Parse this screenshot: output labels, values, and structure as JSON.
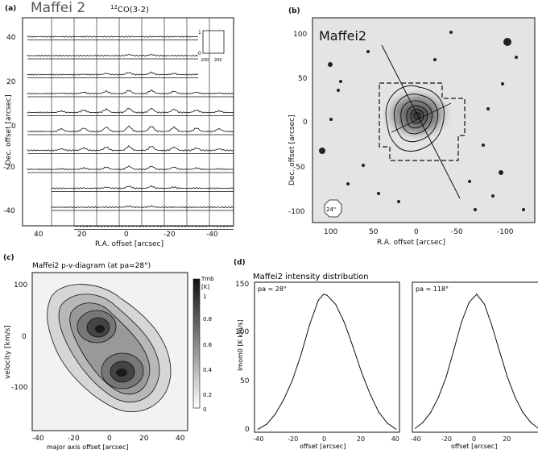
{
  "panel_a": {
    "tag": "(a)",
    "title": "Maffei 2",
    "line": "12CO(3-2)",
    "line_sup": "12",
    "line_rest": "CO(3-2)",
    "xlabel": "R.A. offset [arcsec]",
    "ylabel": "Dec. offset [arcsec]",
    "xticks": [
      "40",
      "20",
      "0",
      "-20",
      "-40"
    ],
    "yticks": [
      "40",
      "20",
      "0",
      "-20",
      "-40"
    ],
    "inset": {
      "ytop": "1",
      "ybot": "0",
      "xleft": "-200",
      "xright": "200"
    }
  },
  "panel_b": {
    "tag": "(b)",
    "title": "Maffei2",
    "xlabel": "R.A. offset [arcsec]",
    "ylabel": "Dec. offset [arcsec]",
    "xticks": [
      "100",
      "50",
      "0",
      "-50",
      "-100"
    ],
    "yticks": [
      "100",
      "50",
      "0",
      "-50",
      "-100"
    ],
    "beam": "24\""
  },
  "panel_c": {
    "tag": "(c)",
    "title": "Maffei2    p-v-diagram (at pa=28°)",
    "xlabel": "major axis offset [arcsec]",
    "ylabel": "velocity [km/s]",
    "xticks": [
      "-40",
      "-20",
      "0",
      "20",
      "40"
    ],
    "yticks": [
      "100",
      "0",
      "-100"
    ],
    "cbar_title": "Tmb",
    "cbar_unit": "[K]",
    "cbar_ticks": [
      "1",
      "0.8",
      "0.6",
      "0.4",
      "0.2",
      "0"
    ]
  },
  "panel_d": {
    "tag": "(d)",
    "title": "Maffei2 intensity distribution",
    "ylabel": "Imom0 [K km/s]",
    "yticks": [
      "150",
      "100",
      "50",
      "0"
    ],
    "xlabel_left": "offset [arcsec]",
    "xlabel_right": "offset [arcsec]",
    "xticks": [
      "-40",
      "-20",
      "0",
      "20",
      "40"
    ],
    "left_pa": "pa = 28°",
    "right_pa": "pa = 118°"
  },
  "chart_data": [
    {
      "type": "line",
      "title": "Maffei2 intensity distribution (pa = 28°)",
      "xlabel": "offset [arcsec]",
      "ylabel": "Imom0 [K km/s]",
      "xlim": [
        -42,
        42
      ],
      "ylim": [
        0,
        150
      ],
      "x": [
        -40,
        -35,
        -30,
        -25,
        -20,
        -15,
        -10,
        -5,
        -2,
        0,
        5,
        10,
        15,
        20,
        25,
        30,
        35,
        40
      ],
      "y": [
        3,
        8,
        18,
        33,
        52,
        78,
        108,
        132,
        138,
        137,
        128,
        110,
        86,
        60,
        38,
        20,
        9,
        3
      ]
    },
    {
      "type": "line",
      "title": "Maffei2 intensity distribution (pa = 118°)",
      "xlabel": "offset [arcsec]",
      "ylabel": "Imom0 [K km/s]",
      "xlim": [
        -42,
        42
      ],
      "ylim": [
        0,
        150
      ],
      "x": [
        -40,
        -35,
        -30,
        -25,
        -20,
        -15,
        -10,
        -5,
        0,
        5,
        10,
        15,
        20,
        25,
        30,
        35,
        40
      ],
      "y": [
        4,
        10,
        20,
        35,
        55,
        82,
        110,
        130,
        138,
        128,
        106,
        80,
        55,
        35,
        20,
        10,
        4
      ]
    }
  ]
}
